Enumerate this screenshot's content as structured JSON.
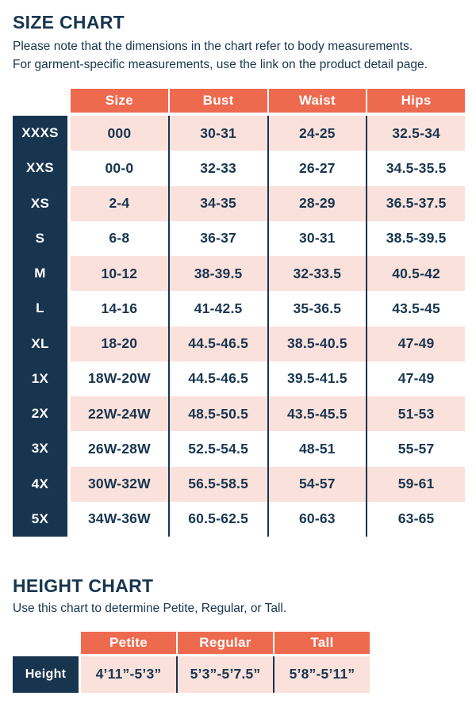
{
  "colors": {
    "navy": "#18354F",
    "orange": "#EE6A4F",
    "pink": "#FAE1DB",
    "white": "#FFFFFF"
  },
  "size_chart": {
    "title": "SIZE CHART",
    "subtitle_line1": "Please note that the dimensions in the chart refer to body measurements.",
    "subtitle_line2": "For garment-specific measurements, use the link on the product detail page.",
    "columns": [
      "Size",
      "Bust",
      "Waist",
      "Hips"
    ],
    "rows": [
      {
        "label": "XXXS",
        "size": "000",
        "bust": "30-31",
        "waist": "24-25",
        "hips": "32.5-34"
      },
      {
        "label": "XXS",
        "size": "00-0",
        "bust": "32-33",
        "waist": "26-27",
        "hips": "34.5-35.5"
      },
      {
        "label": "XS",
        "size": "2-4",
        "bust": "34-35",
        "waist": "28-29",
        "hips": "36.5-37.5"
      },
      {
        "label": "S",
        "size": "6-8",
        "bust": "36-37",
        "waist": "30-31",
        "hips": "38.5-39.5"
      },
      {
        "label": "M",
        "size": "10-12",
        "bust": "38-39.5",
        "waist": "32-33.5",
        "hips": "40.5-42"
      },
      {
        "label": "L",
        "size": "14-16",
        "bust": "41-42.5",
        "waist": "35-36.5",
        "hips": "43.5-45"
      },
      {
        "label": "XL",
        "size": "18-20",
        "bust": "44.5-46.5",
        "waist": "38.5-40.5",
        "hips": "47-49"
      },
      {
        "label": "1X",
        "size": "18W-20W",
        "bust": "44.5-46.5",
        "waist": "39.5-41.5",
        "hips": "47-49"
      },
      {
        "label": "2X",
        "size": "22W-24W",
        "bust": "48.5-50.5",
        "waist": "43.5-45.5",
        "hips": "51-53"
      },
      {
        "label": "3X",
        "size": "26W-28W",
        "bust": "52.5-54.5",
        "waist": "48-51",
        "hips": "55-57"
      },
      {
        "label": "4X",
        "size": "30W-32W",
        "bust": "56.5-58.5",
        "waist": "54-57",
        "hips": "59-61"
      },
      {
        "label": "5X",
        "size": "34W-36W",
        "bust": "60.5-62.5",
        "waist": "60-63",
        "hips": "63-65"
      }
    ]
  },
  "height_chart": {
    "title": "HEIGHT CHART",
    "subtitle": "Use this chart to determine Petite, Regular, or Tall.",
    "columns": [
      "Petite",
      "Regular",
      "Tall"
    ],
    "row_label": "Height",
    "values": [
      "4’11”-5’3”",
      "5’3”-5’7.5”",
      "5’8”-5’11”"
    ]
  }
}
